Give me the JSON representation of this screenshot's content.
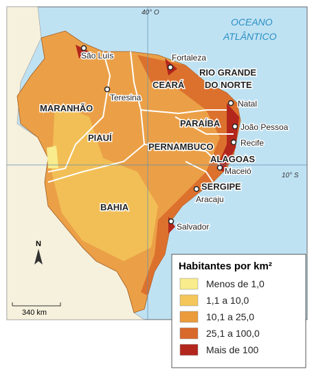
{
  "map": {
    "graticule": {
      "meridian": "40° O",
      "parallel": "10° S"
    },
    "ocean": {
      "line1": "OCEANO",
      "line2": "ATLÂNTICO"
    },
    "states": [
      "MARANHÃO",
      "PIAUÍ",
      "CEARÁ",
      "RIO GRANDE",
      "DO NORTE",
      "PARAÍBA",
      "PERNAMBUCO",
      "ALAGOAS",
      "SERGIPE",
      "BAHIA"
    ],
    "cities": [
      "São Luís",
      "Teresina",
      "Fortaleza",
      "Natal",
      "João Pessoa",
      "Recife",
      "Maceió",
      "Aracaju",
      "Salvador"
    ],
    "north": "N",
    "scale": "340 km"
  },
  "legend": {
    "title": "Habitantes por km²",
    "items": [
      {
        "label": "Menos de 1,0",
        "color": "#f8ec8c"
      },
      {
        "label": "1,1 a 10,0",
        "color": "#f4c75a"
      },
      {
        "label": "10,1 a 25,0",
        "color": "#eb9b3c"
      },
      {
        "label": "25,1 a 100,0",
        "color": "#d9692a"
      },
      {
        "label": "Mais de 100",
        "color": "#b3261c"
      }
    ]
  }
}
